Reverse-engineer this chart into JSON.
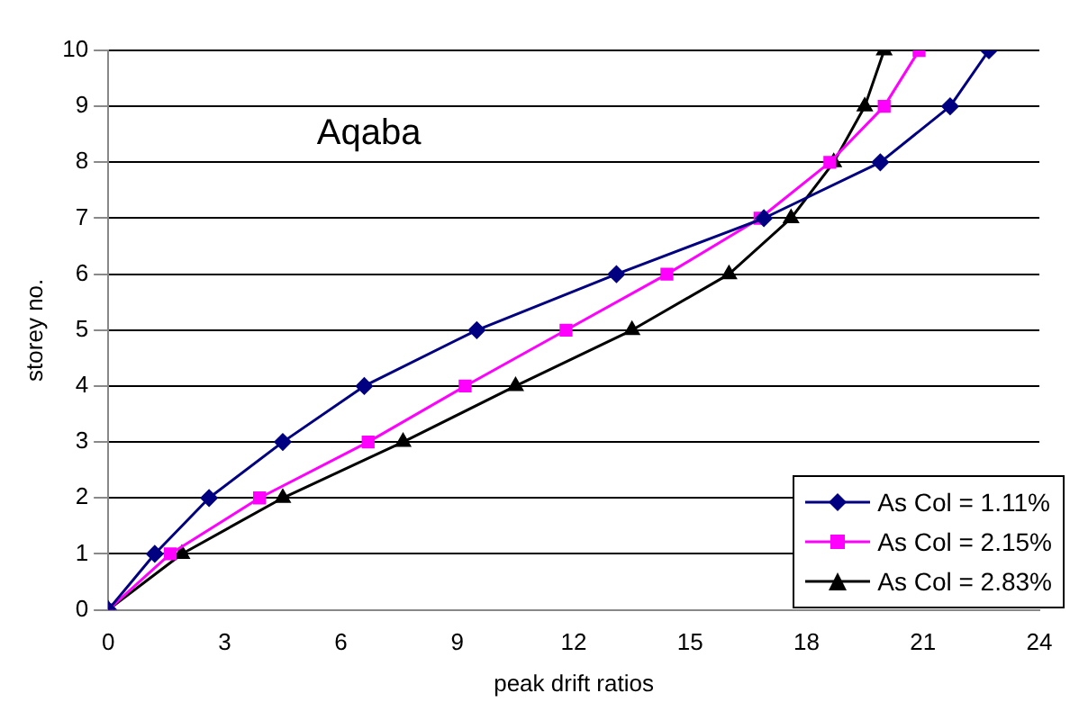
{
  "chart_data": {
    "type": "line",
    "title": "Aqaba",
    "xlabel": "peak drift ratios",
    "ylabel": "storey no.",
    "xlim": [
      0,
      24
    ],
    "xticks": [
      0,
      3,
      6,
      9,
      12,
      15,
      18,
      21,
      24
    ],
    "ylim": [
      0,
      10
    ],
    "yticks": [
      0,
      1,
      2,
      3,
      4,
      5,
      6,
      7,
      8,
      9,
      10
    ],
    "grid": "y",
    "legend": "bottom right",
    "series": [
      {
        "name": "As Col = 1.11%",
        "color": "#000080",
        "marker": "diamond",
        "x": [
          0,
          1.2,
          2.6,
          4.5,
          6.6,
          9.5,
          13.1,
          16.9,
          19.9,
          21.7,
          22.7
        ],
        "values": [
          0,
          1,
          2,
          3,
          4,
          5,
          6,
          7,
          8,
          9,
          10
        ]
      },
      {
        "name": "As Col = 2.15%",
        "color": "#ff00ff",
        "marker": "square",
        "x": [
          0,
          1.6,
          3.9,
          6.7,
          9.2,
          11.8,
          14.4,
          16.8,
          18.6,
          20,
          20.9
        ],
        "values": [
          0,
          1,
          2,
          3,
          4,
          5,
          6,
          7,
          8,
          9,
          10
        ]
      },
      {
        "name": "As Col = 2.83%",
        "color": "#000000",
        "marker": "triangle",
        "x": [
          0,
          1.9,
          4.5,
          7.6,
          10.5,
          13.5,
          16,
          17.6,
          18.7,
          19.5,
          20
        ],
        "values": [
          0,
          1,
          2,
          3,
          4,
          5,
          6,
          7,
          8,
          9,
          10
        ]
      }
    ]
  }
}
